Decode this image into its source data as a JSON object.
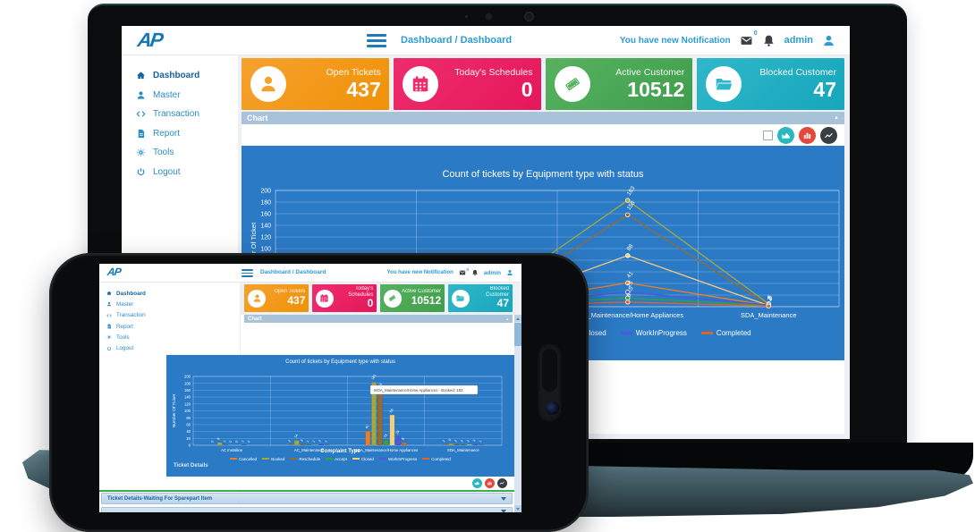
{
  "ui": {
    "logo": "AP",
    "breadcrumb": "Dashboard / Dashboard",
    "header": {
      "notification_text": "You have new Notification",
      "notification_badge": "0",
      "username": "admin"
    },
    "sidebar": [
      {
        "label": "Dashboard",
        "icon": "home-icon",
        "active": true
      },
      {
        "label": "Master",
        "icon": "user-icon",
        "active": false
      },
      {
        "label": "Transaction",
        "icon": "transaction-icon",
        "active": false
      },
      {
        "label": "Report",
        "icon": "report-icon",
        "active": false
      },
      {
        "label": "Tools",
        "icon": "gear-icon",
        "active": false
      },
      {
        "label": "Logout",
        "icon": "power-icon",
        "active": false
      }
    ],
    "stat_cards": [
      {
        "title": "Open Tickets",
        "value": "437",
        "icon": "user-icon",
        "color": "#f6a12e",
        "color2": "#f09207"
      },
      {
        "title": "Today's Schedules",
        "value": "0",
        "icon": "calendar-icon",
        "color": "#ee2d6d",
        "color2": "#e5175b"
      },
      {
        "title": "Active Customer",
        "value": "10512",
        "icon": "ticket-icon",
        "color": "#57b25f",
        "color2": "#3f9e4c"
      },
      {
        "title": "Blocked Customer",
        "value": "47",
        "icon": "folder-open-icon",
        "color": "#2fb7ca",
        "color2": "#17a6bb"
      }
    ],
    "chart_panel": {
      "title": "Chart",
      "collapse_icon": "▲",
      "buttons": [
        {
          "name": "area-chart-button",
          "color": "#29b7c0"
        },
        {
          "name": "bar-chart-button",
          "color": "#e4483a"
        },
        {
          "name": "line-chart-button",
          "color": "#393e44"
        }
      ]
    },
    "ticket_details": {
      "section_label": "Ticket Details",
      "accordions": [
        "Ticket Details-Waiting For Sparepart Item"
      ]
    }
  },
  "chart_data": [
    {
      "device": "laptop",
      "type": "line",
      "title": "Count of tickets by  Equipment type with status",
      "ylabel": "Number Of Ticket",
      "ylim": [
        0,
        200
      ],
      "ytick_step": 20,
      "grid": true,
      "legend_position": "bottom",
      "categories": [
        "AC Installion",
        "AC_Maintenance",
        "MOA_Maintenance/Home Appliances",
        "SDA_Maintenance"
      ],
      "series": [
        {
          "name": "Cancelled",
          "color": "#ef7d24",
          "values": [
            0,
            2,
            41,
            2
          ]
        },
        {
          "name": "Booked",
          "color": "#a8a83a",
          "values": [
            8,
            14,
            183,
            5
          ]
        },
        {
          "name": "Reschedule",
          "color": "#996a2e",
          "values": [
            1,
            3,
            158,
            2
          ]
        },
        {
          "name": "Accept",
          "color": "#33a533",
          "values": [
            0,
            1,
            15,
            2
          ]
        },
        {
          "name": "Closed",
          "color": "#f5cf7f",
          "values": [
            0,
            1,
            88,
            2
          ]
        },
        {
          "name": "WorkInProgress",
          "color": "#5056dd",
          "values": [
            1,
            2,
            25,
            3
          ]
        },
        {
          "name": "Completed",
          "color": "#e2622b",
          "values": [
            0,
            1,
            8,
            1
          ]
        }
      ]
    },
    {
      "device": "phone",
      "type": "bar",
      "title": "Count of tickets by  Equipment type with status",
      "xlabel": "Complaint Type",
      "ylabel": "Number Of Ticket",
      "ylim": [
        0,
        200
      ],
      "ytick_step": 20,
      "grid": true,
      "legend_position": "bottom",
      "tooltip": "MOA_Maintenance/Home Appliances - Booked: 183",
      "categories": [
        "AC Installion",
        "AC_Maintenance",
        "MOA_Maintenance/Home Appliances",
        "SDA_Maintenance"
      ],
      "series": [
        {
          "name": "Cancelled",
          "color": "#ef7d24",
          "values": [
            0,
            2,
            41,
            2
          ]
        },
        {
          "name": "Booked",
          "color": "#a8a83a",
          "values": [
            8,
            14,
            183,
            5
          ]
        },
        {
          "name": "Reschedule",
          "color": "#996a2e",
          "values": [
            1,
            3,
            158,
            2
          ]
        },
        {
          "name": "Accept",
          "color": "#33a533",
          "values": [
            0,
            1,
            15,
            2
          ]
        },
        {
          "name": "Closed",
          "color": "#f5cf7f",
          "values": [
            0,
            1,
            88,
            2
          ]
        },
        {
          "name": "WorkInProgress",
          "color": "#5056dd",
          "values": [
            1,
            2,
            25,
            3
          ]
        },
        {
          "name": "Completed",
          "color": "#e2622b",
          "values": [
            0,
            1,
            8,
            1
          ]
        }
      ]
    }
  ]
}
